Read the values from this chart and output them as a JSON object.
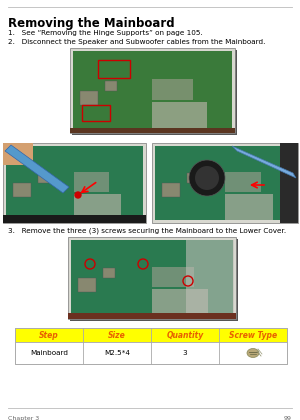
{
  "title": "Removing the Mainboard",
  "step1": "1.   See “Removing the Hinge Supports” on page 105.",
  "step2": "2.   Disconnect the Speaker and Subwoofer cables from the Mainboard.",
  "step3": "3.   Remove the three (3) screws securing the Mainboard to the Lower Cover.",
  "table_headers": [
    "Step",
    "Size",
    "Quantity",
    "Screw Type"
  ],
  "table_row": [
    "Mainboard",
    "M2.5*4",
    "3",
    ""
  ],
  "header_bg": "#FFFF00",
  "header_text_color": "#E86000",
  "table_border": "#AAAAAA",
  "page_number": "99",
  "top_line_color": "#BBBBBB",
  "bottom_line_color": "#BBBBBB",
  "bg_color": "#FFFFFF",
  "footer_left": "Chapter 3",
  "img1_board_color": "#3A7A3A",
  "img1_shadow": "#222222",
  "img2_board_color": "#2A7A50",
  "img3_board_color": "#2A7A50",
  "img4_board_color": "#2A7A50"
}
